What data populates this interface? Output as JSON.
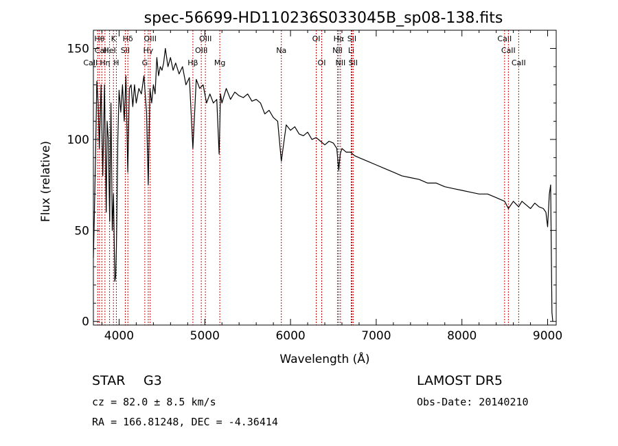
{
  "chart_data": {
    "type": "line",
    "title": "spec-56699-HD110236S033045B_sp08-138.fits",
    "xlabel": "Wavelength (Å)",
    "ylabel": "Flux (relative)",
    "xlim": [
      3700,
      9100
    ],
    "ylim": [
      -2,
      160
    ],
    "xticks": [
      4000,
      5000,
      6000,
      7000,
      8000,
      9000
    ],
    "xtick_labels": [
      "4000",
      "5000",
      "6000",
      "7000",
      "8000",
      "9000"
    ],
    "yticks": [
      0,
      50,
      100,
      150
    ],
    "ytick_labels": [
      "0",
      "50",
      "100",
      "150"
    ],
    "grid": false,
    "line_color": "#000000",
    "marker_color": "#cc0000",
    "series": [
      {
        "x": [
          3700,
          3712,
          3725,
          3740,
          3755,
          3770,
          3790,
          3810,
          3830,
          3850,
          3860,
          3875,
          3890,
          3905,
          3920,
          3935,
          3950,
          3960,
          3968,
          3975,
          3985,
          4000,
          4020,
          4040,
          4060,
          4080,
          4101,
          4120,
          4140,
          4160,
          4180,
          4200,
          4230,
          4260,
          4290,
          4320,
          4340,
          4360,
          4380,
          4400,
          4420,
          4440,
          4460,
          4480,
          4500,
          4520,
          4540,
          4570,
          4600,
          4630,
          4660,
          4700,
          4740,
          4780,
          4820,
          4861,
          4900,
          4940,
          4980,
          5020,
          5060,
          5100,
          5140,
          5167,
          5172,
          5183,
          5200,
          5250,
          5300,
          5350,
          5400,
          5450,
          5500,
          5550,
          5600,
          5650,
          5700,
          5750,
          5800,
          5850,
          5893,
          5950,
          6000,
          6050,
          6100,
          6150,
          6200,
          6250,
          6300,
          6350,
          6400,
          6450,
          6500,
          6540,
          6563,
          6580,
          6600,
          6650,
          6700,
          6750,
          6800,
          6900,
          7000,
          7100,
          7200,
          7300,
          7400,
          7500,
          7600,
          7700,
          7800,
          7900,
          8000,
          8100,
          8200,
          8300,
          8400,
          8498,
          8542,
          8600,
          8662,
          8700,
          8750,
          8800,
          8850,
          8900,
          8950,
          8980,
          9000,
          9020,
          9035,
          9050,
          9060
        ],
        "y": [
          35,
          60,
          90,
          132,
          120,
          95,
          130,
          80,
          130,
          60,
          110,
          100,
          55,
          120,
          50,
          70,
          22,
          25,
          40,
          60,
          100,
          127,
          115,
          130,
          110,
          135,
          82,
          128,
          130,
          118,
          130,
          120,
          128,
          125,
          135,
          115,
          75,
          128,
          120,
          130,
          125,
          145,
          135,
          140,
          138,
          142,
          150,
          140,
          145,
          138,
          142,
          136,
          140,
          130,
          134,
          95,
          133,
          128,
          130,
          120,
          125,
          120,
          122,
          92,
          100,
          125,
          120,
          128,
          122,
          126,
          124,
          123,
          125,
          121,
          122,
          120,
          114,
          116,
          112,
          110,
          88,
          108,
          105,
          107,
          103,
          102,
          104,
          100,
          101,
          99,
          97,
          99,
          98,
          95,
          83,
          92,
          95,
          93,
          93,
          91,
          90,
          88,
          86,
          84,
          82,
          80,
          79,
          78,
          76,
          76,
          74,
          73,
          72,
          71,
          70,
          70,
          68,
          66,
          62,
          66,
          63,
          66,
          64,
          62,
          65,
          63,
          62,
          60,
          52,
          70,
          75,
          5,
          0
        ]
      }
    ],
    "lines": [
      {
        "w": 3750,
        "label": "CaII",
        "row": 3,
        "anchor": "end"
      },
      {
        "w": 3771,
        "label": "Hθ",
        "row": 1,
        "anchor": "middle"
      },
      {
        "w": 3798,
        "label": "CaII",
        "row": 2,
        "anchor": "middle"
      },
      {
        "w": 3835,
        "label": "Hη",
        "row": 3,
        "anchor": "middle"
      },
      {
        "w": 3889,
        "label": "HeI",
        "row": 2,
        "anchor": "middle"
      },
      {
        "w": 3934,
        "label": "K",
        "row": 1,
        "anchor": "middle"
      },
      {
        "w": 3968,
        "label": "H",
        "row": 3,
        "anchor": "middle"
      },
      {
        "w": 4072,
        "label": "SII",
        "row": 2,
        "anchor": "middle"
      },
      {
        "w": 4102,
        "label": "Hδ",
        "row": 1,
        "anchor": "middle"
      },
      {
        "w": 4300,
        "label": "G",
        "row": 3,
        "anchor": "middle"
      },
      {
        "w": 4340,
        "label": "Hγ",
        "row": 2,
        "anchor": "middle"
      },
      {
        "w": 4363,
        "label": "OIII",
        "row": 1,
        "anchor": "middle"
      },
      {
        "w": 4861,
        "label": "Hβ",
        "row": 3,
        "anchor": "middle"
      },
      {
        "w": 4959,
        "label": "OIII",
        "row": 2,
        "anchor": "middle"
      },
      {
        "w": 5007,
        "label": "OIII",
        "row": 1,
        "anchor": "middle"
      },
      {
        "w": 5175,
        "label": "Mg",
        "row": 3,
        "anchor": "middle"
      },
      {
        "w": 5893,
        "label": "Na",
        "row": 2,
        "anchor": "middle"
      },
      {
        "w": 6300,
        "label": "OI",
        "row": 1,
        "anchor": "middle"
      },
      {
        "w": 6364,
        "label": "OI",
        "row": 3,
        "anchor": "middle"
      },
      {
        "w": 6548,
        "label": "NII",
        "row": 2,
        "anchor": "middle"
      },
      {
        "w": 6563,
        "label": "Hα",
        "row": 1,
        "anchor": "middle"
      },
      {
        "w": 6583,
        "label": "NII",
        "row": 3,
        "anchor": "middle"
      },
      {
        "w": 6708,
        "label": "Li",
        "row": 2,
        "anchor": "middle"
      },
      {
        "w": 6716,
        "label": "SII",
        "row": 1,
        "anchor": "middle"
      },
      {
        "w": 6731,
        "label": "SII",
        "row": 3,
        "anchor": "middle"
      },
      {
        "w": 8498,
        "label": "CaII",
        "row": 1,
        "anchor": "middle"
      },
      {
        "w": 8542,
        "label": "CaII",
        "row": 2,
        "anchor": "middle"
      },
      {
        "w": 8662,
        "label": "CaII",
        "row": 3,
        "anchor": "middle"
      }
    ]
  },
  "info": {
    "object_class": "STAR",
    "subclass": "G3",
    "survey": "LAMOST DR5",
    "cz": "cz = 82.0 ± 8.5 km/s",
    "obs_date": "Obs-Date: 20140210",
    "coords": "RA = 166.81248, DEC =  -4.36414"
  }
}
